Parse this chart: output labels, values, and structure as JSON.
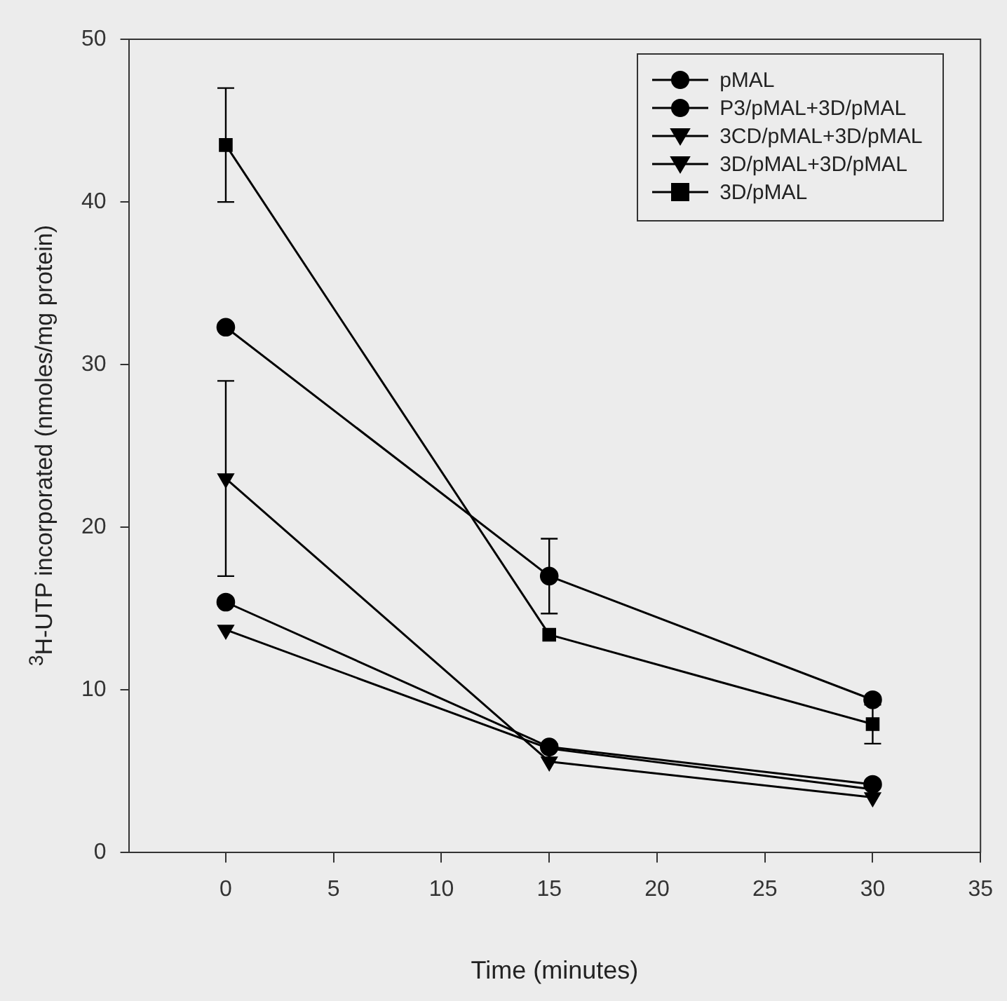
{
  "chart_data": {
    "type": "line",
    "xlabel": "Time (minutes)",
    "ylabel": "$^{3}$H-UTP incorporated (nmoles/mg protein)",
    "x": [
      0,
      15,
      30
    ],
    "series": [
      {
        "name": "pMAL",
        "color": "#000000",
        "marker": "circle",
        "values": [
          32.3,
          17.0,
          9.4
        ],
        "errors": [
          null,
          2.3,
          null
        ]
      },
      {
        "name": "P3/pMAL+3D/pMAL",
        "color": "#000000",
        "marker": "circle",
        "values": [
          15.4,
          6.5,
          4.2
        ]
      },
      {
        "name": "3CD/pMAL+3D/pMAL",
        "color": "#000000",
        "marker": "triangle",
        "values": [
          23.0,
          5.6,
          3.4
        ],
        "errors": [
          6.0,
          null,
          null
        ]
      },
      {
        "name": "3D/pMAL+3D/pMAL",
        "color": "#000000",
        "marker": "triangle",
        "values": [
          13.7,
          6.4,
          3.9
        ]
      },
      {
        "name": "3D/pMAL",
        "color": "#000000",
        "marker": "square",
        "values": [
          43.5,
          13.4,
          7.9
        ],
        "errors": [
          3.5,
          null,
          1.2
        ]
      }
    ],
    "xlim": [
      -4.5,
      35
    ],
    "xticks": [
      0,
      5,
      10,
      15,
      20,
      25,
      30,
      35
    ],
    "ylim": [
      0,
      50
    ],
    "yticks": [
      0,
      10,
      20,
      30,
      40,
      50
    ],
    "grid": false,
    "legend": "top right",
    "line_style": "solid"
  }
}
